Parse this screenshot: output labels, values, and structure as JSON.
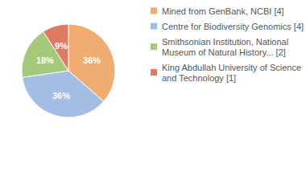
{
  "chart_data": {
    "type": "pie",
    "categories": [
      "Mined from GenBank, NCBI [4]",
      "Centre for Biodiversity Genomics [4]",
      "Smithsonian Institution, National Museum of Natural History... [2]",
      "King Abdullah University of Science and Technology [1]"
    ],
    "values": [
      36,
      36,
      18,
      9
    ],
    "value_labels": [
      "36%",
      "36%",
      "18%",
      "9%"
    ],
    "colors": [
      "#f0ad72",
      "#a3bde3",
      "#a5c97c",
      "#e07b63"
    ],
    "data_labels": true,
    "legend": "right"
  }
}
